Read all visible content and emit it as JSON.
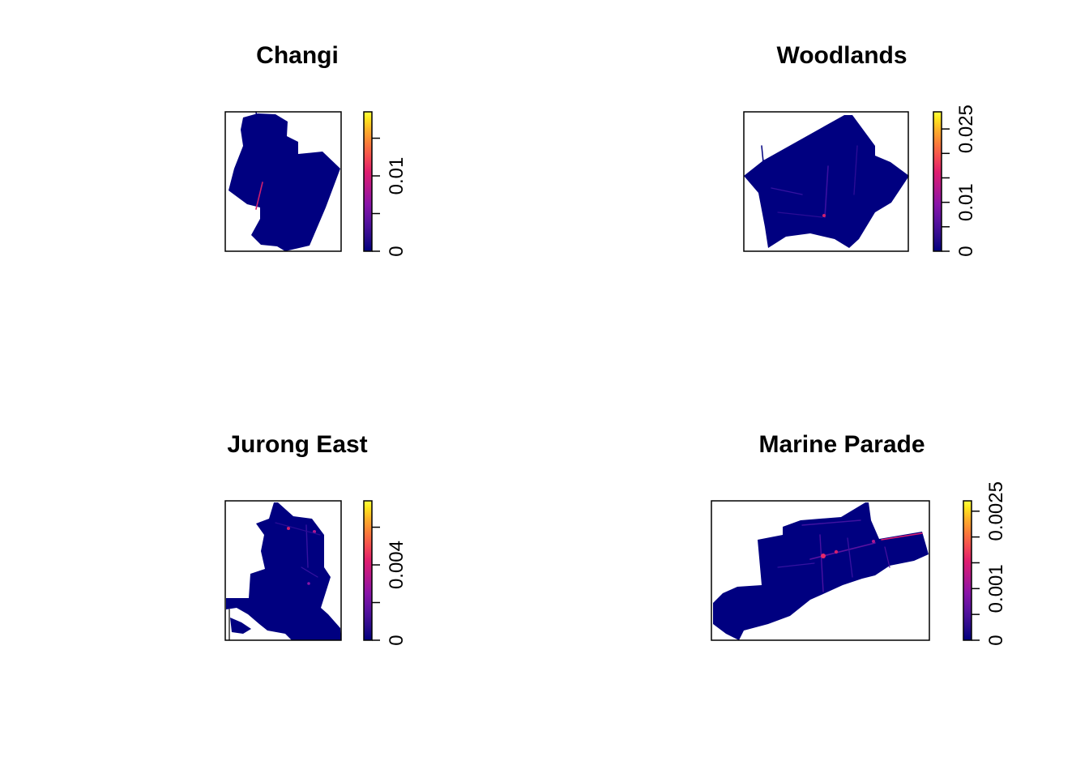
{
  "chart_data": [
    {
      "type": "heatmap",
      "title": "Changi",
      "colorbar": {
        "ticks": [
          0,
          0.005,
          0.01,
          0.015
        ],
        "labels": [
          "0",
          "",
          "0.01",
          ""
        ],
        "max": 0.0185
      }
    },
    {
      "type": "heatmap",
      "title": "Woodlands",
      "colorbar": {
        "ticks": [
          0,
          0.005,
          0.01,
          0.015,
          0.02,
          0.025
        ],
        "labels": [
          "0",
          "",
          "0.01",
          "",
          "",
          "0.025"
        ],
        "max": 0.0285
      }
    },
    {
      "type": "heatmap",
      "title": "Jurong East",
      "colorbar": {
        "ticks": [
          0,
          0.002,
          0.004,
          0.006
        ],
        "labels": [
          "0",
          "",
          "0.004",
          ""
        ],
        "max": 0.0074
      }
    },
    {
      "type": "heatmap",
      "title": "Marine Parade",
      "colorbar": {
        "ticks": [
          0,
          0.0005,
          0.001,
          0.0015,
          0.002,
          0.0025
        ],
        "labels": [
          "0",
          "",
          "0.001",
          "",
          "",
          "0.0025"
        ],
        "max": 0.0027
      }
    }
  ],
  "colors": {
    "low": "#000080",
    "palette": [
      "#00007F",
      "#2B0C8C",
      "#5A12A0",
      "#8A14A8",
      "#B8198A",
      "#E01E6E",
      "#F44A52",
      "#FA7A3A",
      "#FDB02A",
      "#FFE61E",
      "#FFFF40"
    ]
  }
}
